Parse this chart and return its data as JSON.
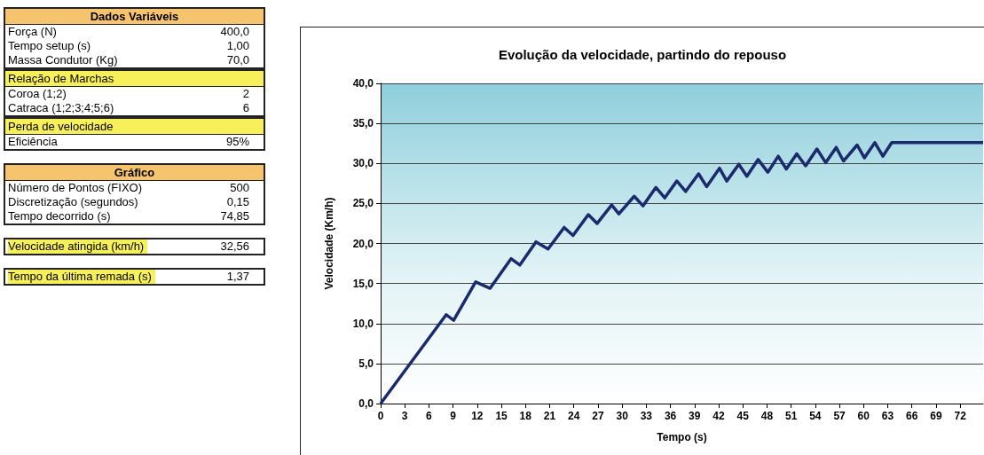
{
  "chart_data": [
    {
      "type": "other",
      "title": "Dados Variáveis",
      "annotations": [
        "Força (N)",
        "400,0",
        "Tempo setup (s)",
        "1,00",
        "Massa Condutor (Kg)",
        "70,0"
      ]
    },
    {
      "type": "other",
      "title": "Relação de Marchas",
      "annotations": [
        "Coroa (1;2)",
        "2",
        "Catraca (1;2;3;4;5;6)",
        "6"
      ]
    },
    {
      "type": "other",
      "title": "Perda de velocidade",
      "annotations": [
        "Eficiência",
        "95%"
      ]
    },
    {
      "type": "other",
      "title": "Gráfico",
      "annotations": [
        "Número de Pontos (FIXO)",
        "500",
        "Discretização (segundos)",
        "0,15",
        "Tempo decorrido (s)",
        "74,85"
      ]
    },
    {
      "type": "other",
      "annotations": [
        "Velocidade atingida (km/h)",
        "32,56"
      ]
    },
    {
      "type": "other",
      "annotations": [
        "Tempo da última remada (s)",
        "1,37"
      ]
    },
    {
      "type": "line",
      "title": "Evolução da velocidade, partindo do repouso",
      "xlabel": "Tempo (s)",
      "ylabel": "Velocidade (Km/h)",
      "x": [
        0,
        8.15,
        9.07,
        11.8,
        13.6,
        16.2,
        17.3,
        19.3,
        20.8,
        22.8,
        23.9,
        25.8,
        26.9,
        28.7,
        29.6,
        31.5,
        32.6,
        34.2,
        35.3,
        36.8,
        37.9,
        39.5,
        40.5,
        42.1,
        43.0,
        44.5,
        45.5,
        46.9,
        48.1,
        49.4,
        50.4,
        51.7,
        52.8,
        54.2,
        55.3,
        56.6,
        57.5,
        59.2,
        60.1,
        61.4,
        62.4,
        63.5,
        74.85
      ],
      "series": [
        {
          "color": "#1a2a6c",
          "values": [
            0,
            11.1,
            10.4,
            15.2,
            14.4,
            18.1,
            17.3,
            20.2,
            19.3,
            22.0,
            21.0,
            23.6,
            22.5,
            24.8,
            23.7,
            25.9,
            24.7,
            27.0,
            25.7,
            27.8,
            26.5,
            28.7,
            27.1,
            29.4,
            27.8,
            29.9,
            28.4,
            30.5,
            28.9,
            30.9,
            29.3,
            31.2,
            29.7,
            31.8,
            30.1,
            32.0,
            30.3,
            32.3,
            30.7,
            32.6,
            30.9,
            32.6,
            32.6
          ]
        }
      ],
      "xlim": [
        0,
        74.85
      ],
      "xticks": [
        0,
        3,
        6,
        9,
        12,
        15,
        18,
        21,
        24,
        27,
        30,
        33,
        36,
        39,
        42,
        45,
        48,
        51,
        54,
        57,
        60,
        63,
        66,
        69,
        72
      ],
      "ylim": [
        0,
        40
      ],
      "yticks": [
        {
          "value": 0,
          "label": "0,0"
        },
        {
          "value": 5,
          "label": "5,0"
        },
        {
          "value": 10,
          "label": "10,0"
        },
        {
          "value": 15,
          "label": "15,0"
        },
        {
          "value": 20,
          "label": "20,0"
        },
        {
          "value": 25,
          "label": "25,0"
        },
        {
          "value": 30,
          "label": "30,0"
        },
        {
          "value": 35,
          "label": "35,0"
        },
        {
          "value": 40,
          "label": "40,0"
        }
      ],
      "grid": "y",
      "marker": "none",
      "line_style": "solid"
    }
  ]
}
